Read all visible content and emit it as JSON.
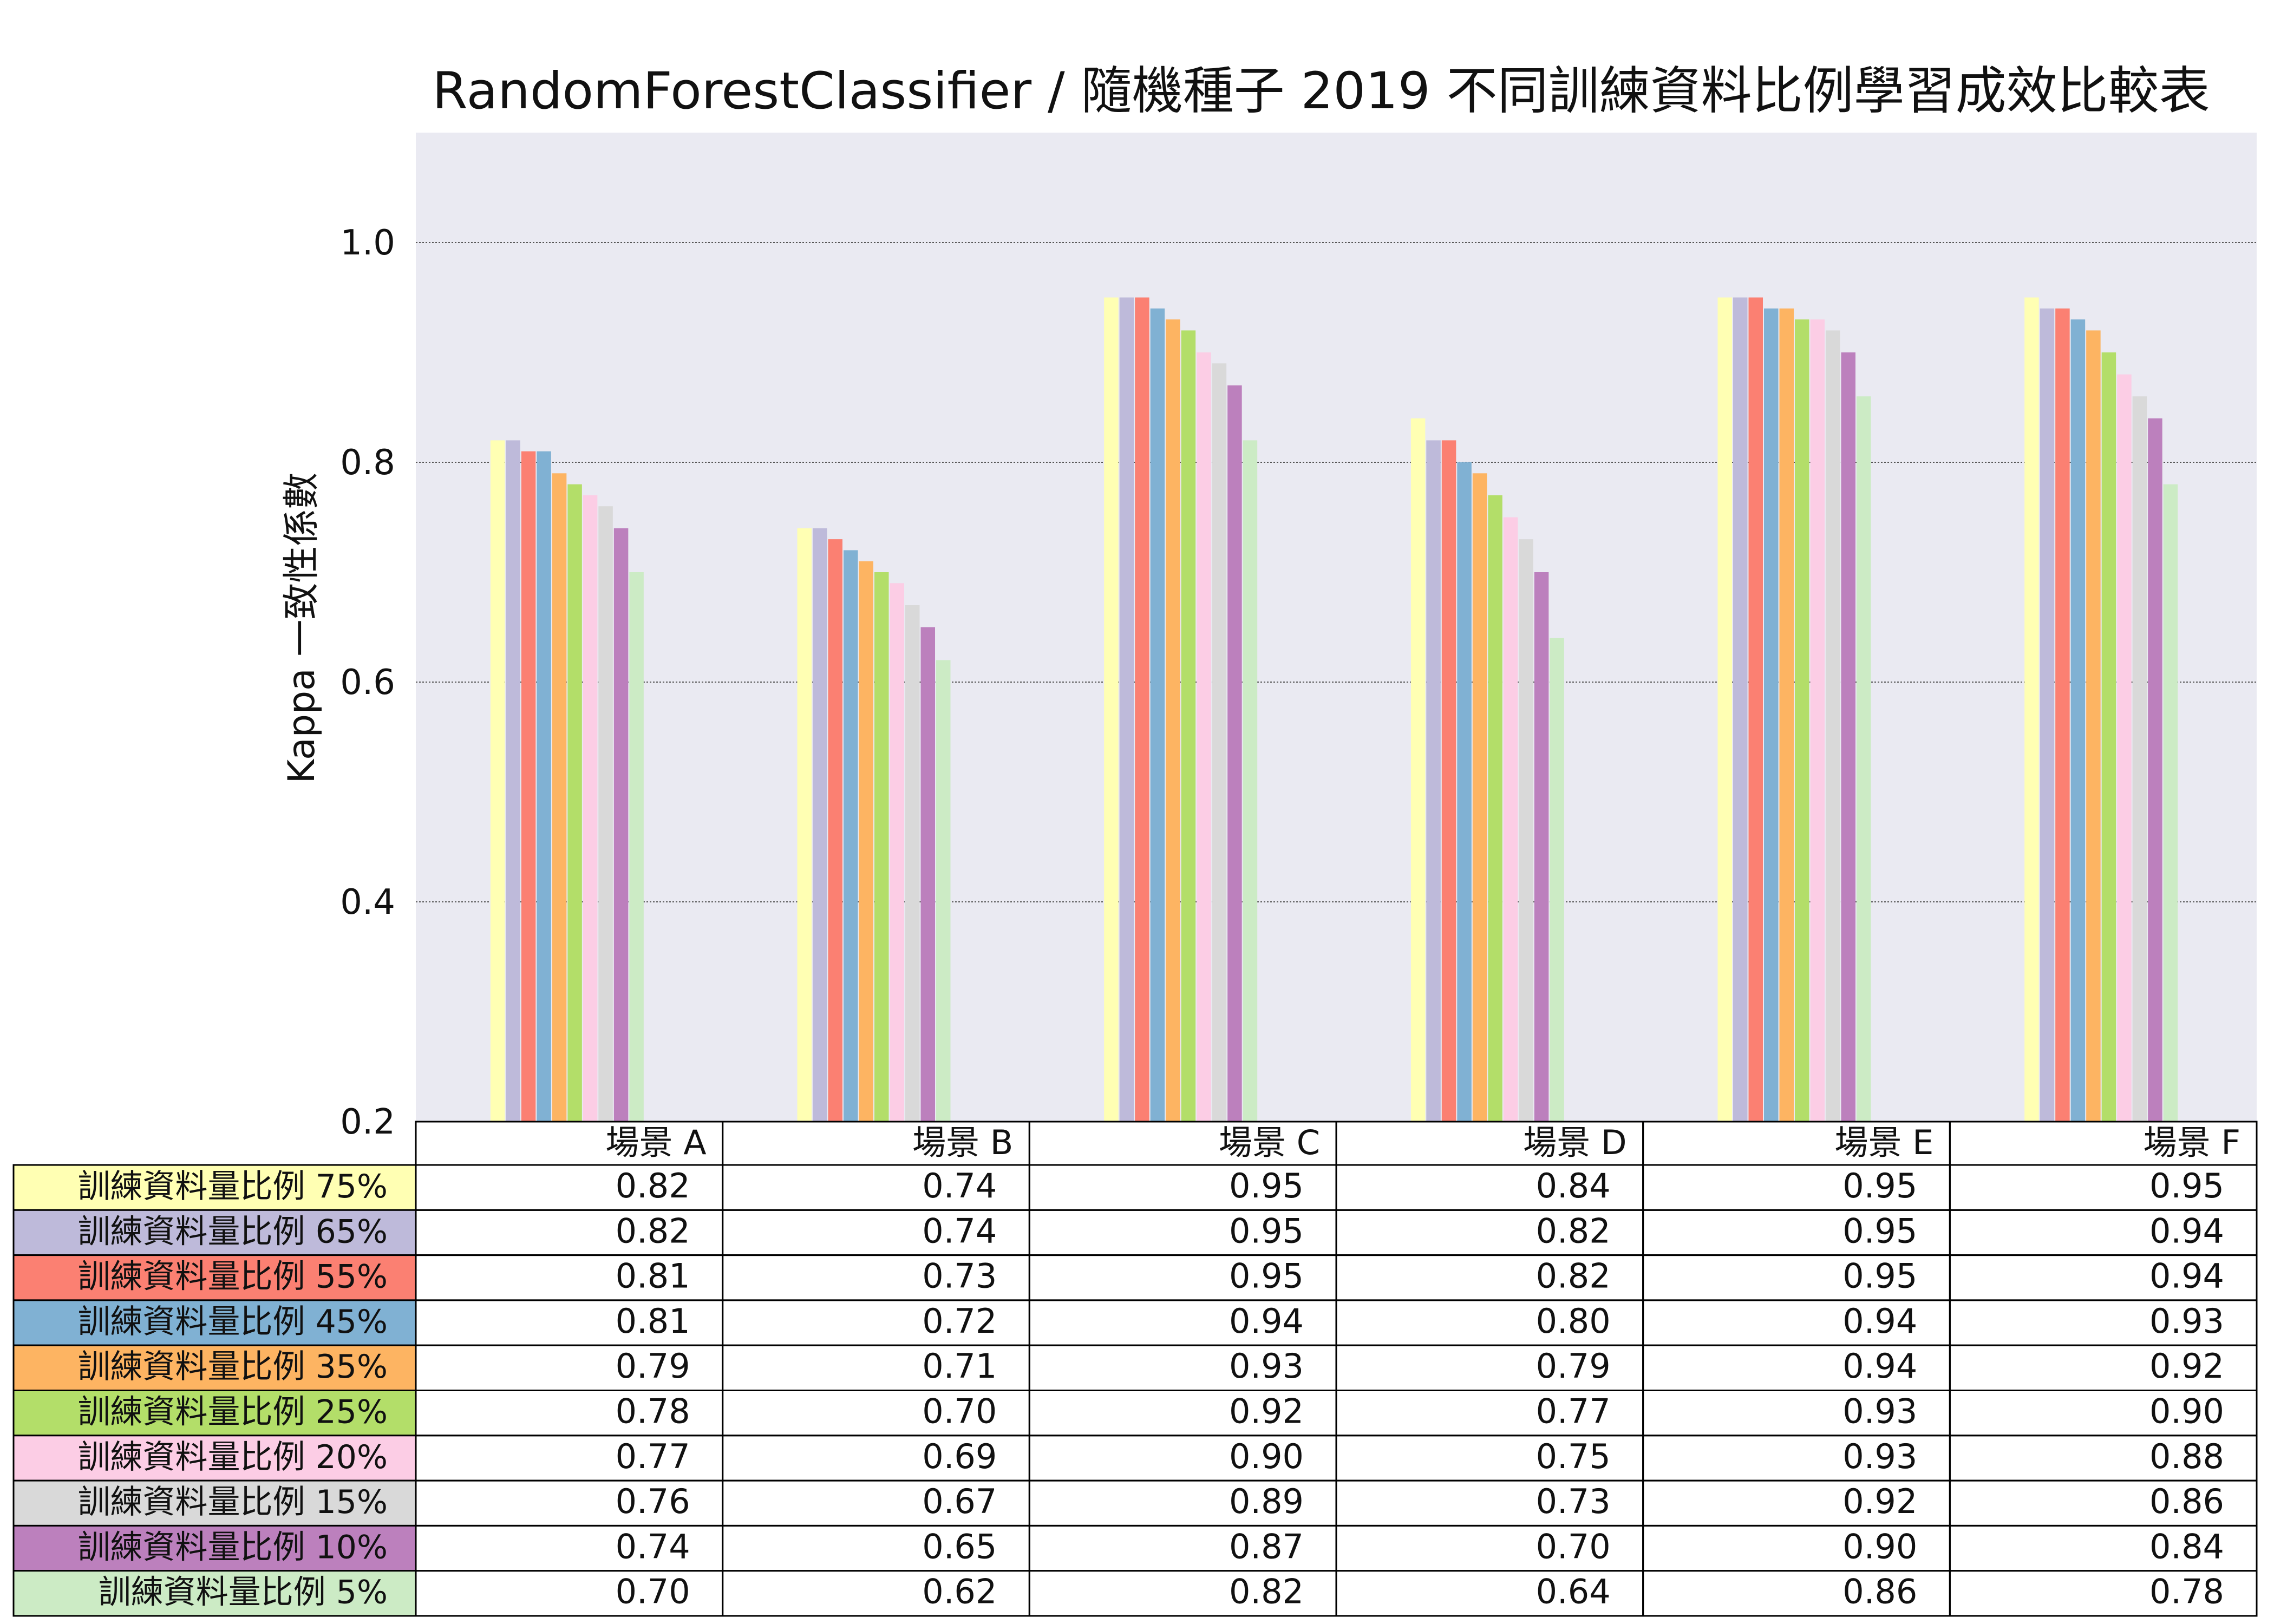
{
  "chart_data": {
    "type": "bar",
    "title": "RandomForestClassifier / 隨機種子 2019 不同訓練資料比例學習成效比較表",
    "xlabel": "",
    "ylabel": "Kappa 一致性係數",
    "ylim": [
      0.2,
      1.1
    ],
    "yticks": [
      "0.2",
      "0.4",
      "0.6",
      "0.8",
      "1.0"
    ],
    "grid": true,
    "categories": [
      "場景 A",
      "場景 B",
      "場景 C",
      "場景 D",
      "場景 E",
      "場景 F"
    ],
    "series": [
      {
        "name": "訓練資料量比例 75%",
        "color": "#FFFFB3",
        "values": [
          0.82,
          0.74,
          0.95,
          0.84,
          0.95,
          0.95
        ],
        "labels": [
          "0.82",
          "0.74",
          "0.95",
          "0.84",
          "0.95",
          "0.95"
        ]
      },
      {
        "name": "訓練資料量比例 65%",
        "color": "#BEBADA",
        "values": [
          0.82,
          0.74,
          0.95,
          0.82,
          0.95,
          0.94
        ],
        "labels": [
          "0.82",
          "0.74",
          "0.95",
          "0.82",
          "0.95",
          "0.94"
        ]
      },
      {
        "name": "訓練資料量比例 55%",
        "color": "#FB8072",
        "values": [
          0.81,
          0.73,
          0.95,
          0.82,
          0.95,
          0.94
        ],
        "labels": [
          "0.81",
          "0.73",
          "0.95",
          "0.82",
          "0.95",
          "0.94"
        ]
      },
      {
        "name": "訓練資料量比例 45%",
        "color": "#80B1D3",
        "values": [
          0.81,
          0.72,
          0.94,
          0.8,
          0.94,
          0.93
        ],
        "labels": [
          "0.81",
          "0.72",
          "0.94",
          "0.80",
          "0.94",
          "0.93"
        ]
      },
      {
        "name": "訓練資料量比例 35%",
        "color": "#FDB462",
        "values": [
          0.79,
          0.71,
          0.93,
          0.79,
          0.94,
          0.92
        ],
        "labels": [
          "0.79",
          "0.71",
          "0.93",
          "0.79",
          "0.94",
          "0.92"
        ]
      },
      {
        "name": "訓練資料量比例 25%",
        "color": "#B3DE69",
        "values": [
          0.78,
          0.7,
          0.92,
          0.77,
          0.93,
          0.9
        ],
        "labels": [
          "0.78",
          "0.70",
          "0.92",
          "0.77",
          "0.93",
          "0.90"
        ]
      },
      {
        "name": "訓練資料量比例 20%",
        "color": "#FCCDE5",
        "values": [
          0.77,
          0.69,
          0.9,
          0.75,
          0.93,
          0.88
        ],
        "labels": [
          "0.77",
          "0.69",
          "0.90",
          "0.75",
          "0.93",
          "0.88"
        ]
      },
      {
        "name": "訓練資料量比例 15%",
        "color": "#D9D9D9",
        "values": [
          0.76,
          0.67,
          0.89,
          0.73,
          0.92,
          0.86
        ],
        "labels": [
          "0.76",
          "0.67",
          "0.89",
          "0.73",
          "0.92",
          "0.86"
        ]
      },
      {
        "name": "訓練資料量比例 10%",
        "color": "#BC80BD",
        "values": [
          0.74,
          0.65,
          0.87,
          0.7,
          0.9,
          0.84
        ],
        "labels": [
          "0.74",
          "0.65",
          "0.87",
          "0.70",
          "0.90",
          "0.84"
        ]
      },
      {
        "name": "訓練資料量比例 5%",
        "color": "#CCEBC5",
        "values": [
          0.7,
          0.62,
          0.82,
          0.64,
          0.86,
          0.78
        ],
        "labels": [
          "0.70",
          "0.62",
          "0.82",
          "0.64",
          "0.86",
          "0.78"
        ]
      }
    ]
  },
  "colors": {
    "plot_background": "#EAEAF2",
    "grid_line": "#555555",
    "table_border": "#000000"
  }
}
